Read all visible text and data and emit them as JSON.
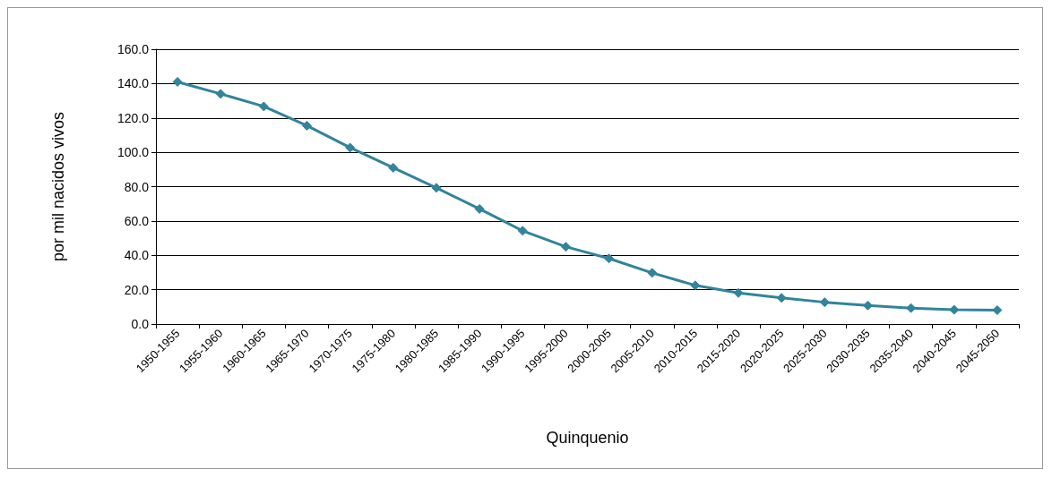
{
  "chart_data": {
    "type": "line",
    "xlabel": "Quinquenio",
    "ylabel": "por mil nacidos vivos",
    "categories": [
      "1950-1955",
      "1955-1960",
      "1960-1965",
      "1965-1970",
      "1970-1975",
      "1975-1980",
      "1980-1985",
      "1985-1990",
      "1990-1995",
      "1995-2000",
      "2000-2005",
      "2005-2010",
      "2010-2015",
      "2015-2020",
      "2020-2025",
      "2025-2030",
      "2030-2035",
      "2035-2040",
      "2040-2045",
      "2045-2050"
    ],
    "series": [
      {
        "color": "#31849b",
        "values": [
          141,
          134,
          126.7,
          115.5,
          102.7,
          91,
          79.3,
          67,
          54.3,
          45,
          38.2,
          29.8,
          22.5,
          18.1,
          15.2,
          12.7,
          10.8,
          9.3,
          8.3,
          8.1
        ]
      }
    ],
    "ylim": [
      0,
      160
    ],
    "yticks": [
      {
        "value": 0,
        "label": "0.0"
      },
      {
        "value": 20,
        "label": "20.0"
      },
      {
        "value": 40,
        "label": "40.0"
      },
      {
        "value": 60,
        "label": "60.0"
      },
      {
        "value": 80,
        "label": "80.0"
      },
      {
        "value": 100,
        "label": "100.0"
      },
      {
        "value": 120,
        "label": "120.0"
      },
      {
        "value": 140,
        "label": "140.0"
      },
      {
        "value": 160,
        "label": "160.0"
      }
    ],
    "grid": "y",
    "marker": "diamond",
    "line_style": "solid"
  }
}
